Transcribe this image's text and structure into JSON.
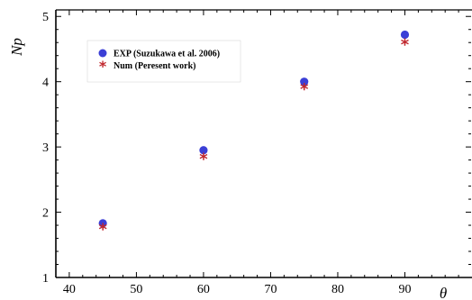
{
  "chart_data": {
    "type": "scatter",
    "xlabel": "θ",
    "ylabel": "Np",
    "xlim": [
      38,
      100
    ],
    "ylim": [
      1,
      5.1
    ],
    "x_ticks": [
      40,
      50,
      60,
      70,
      80,
      90
    ],
    "y_ticks": [
      1,
      2,
      3,
      4,
      5
    ],
    "grid": false,
    "legend_position": "top-left",
    "series": [
      {
        "name": "EXP (Suzukawa et al. 2006)",
        "marker": "circle",
        "color": "#3b3fd6",
        "x": [
          45,
          60,
          75,
          90
        ],
        "y": [
          1.83,
          2.95,
          4.0,
          4.72
        ]
      },
      {
        "name": "Num (Peresent work)",
        "marker": "star",
        "color": "#c0272d",
        "x": [
          45,
          60,
          75,
          90
        ],
        "y": [
          1.75,
          2.83,
          3.9,
          4.58
        ]
      }
    ]
  }
}
